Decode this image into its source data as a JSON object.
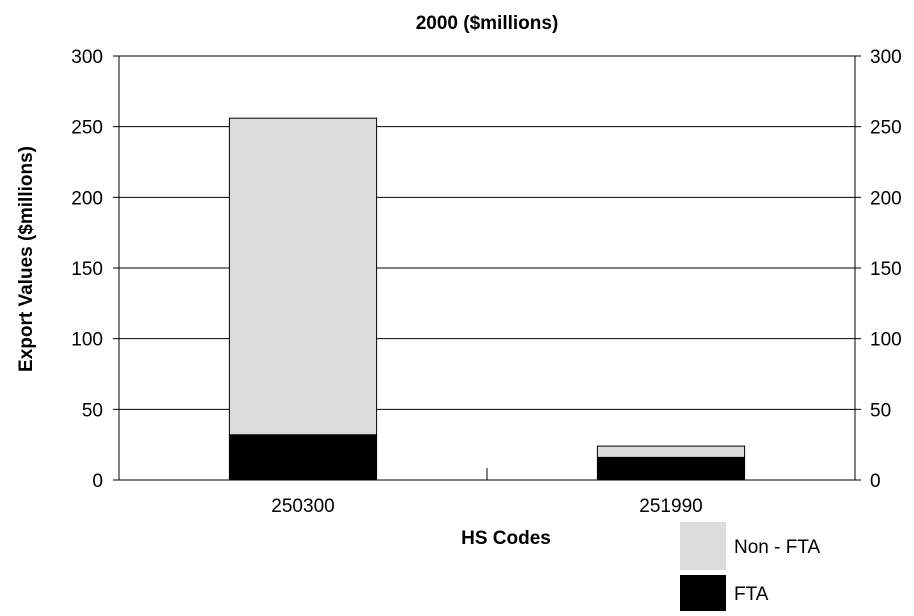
{
  "chart_data": {
    "type": "bar",
    "stacked": true,
    "title": "2000 ($millions)",
    "xlabel": "HS Codes",
    "ylabel": "Export Values ($millions)",
    "ylim": [
      0,
      300
    ],
    "yticks": [
      "0",
      "50",
      "100",
      "150",
      "200",
      "250",
      "300"
    ],
    "y_axis_mirrored_right": true,
    "grid": "horizontal",
    "categories": [
      "250300",
      "251990"
    ],
    "series": [
      {
        "name": "FTA",
        "color": "#000000",
        "values": [
          32,
          16
        ]
      },
      {
        "name": "Non - FTA",
        "color": "#dcdcdc",
        "values": [
          224,
          8
        ]
      }
    ],
    "legend": {
      "position": "bottom-right",
      "order": [
        "Non - FTA",
        "FTA"
      ]
    }
  }
}
